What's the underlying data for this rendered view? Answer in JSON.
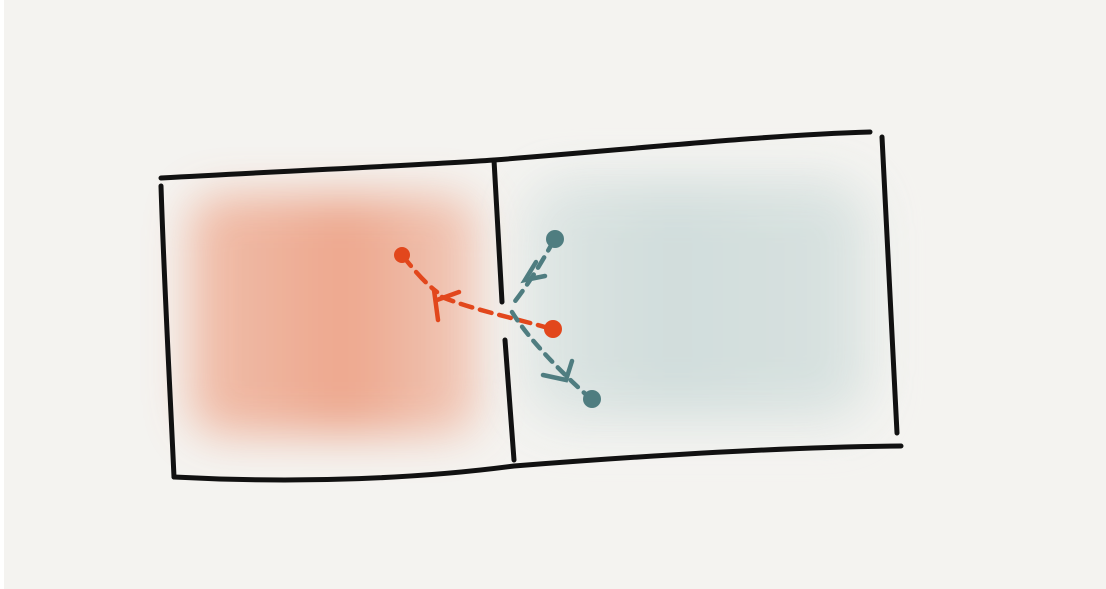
{
  "diagram": {
    "description_text": "",
    "colors": {
      "background": "#f4f3f0",
      "outline": "#111111",
      "left_wash": "#ec9a7c",
      "right_wash": "#bcd0cf",
      "orange_path": "#e2471c",
      "teal_path": "#4f7d80"
    },
    "regions": [
      {
        "name": "left-region",
        "fill": "orange-wash"
      },
      {
        "name": "right-region",
        "fill": "teal-wash"
      }
    ],
    "paths": [
      {
        "name": "orange-path",
        "segments": 2,
        "style": "dashed",
        "has_arrowhead": true
      },
      {
        "name": "teal-path",
        "segments": 2,
        "style": "dashed",
        "has_arrowhead": true
      }
    ]
  }
}
